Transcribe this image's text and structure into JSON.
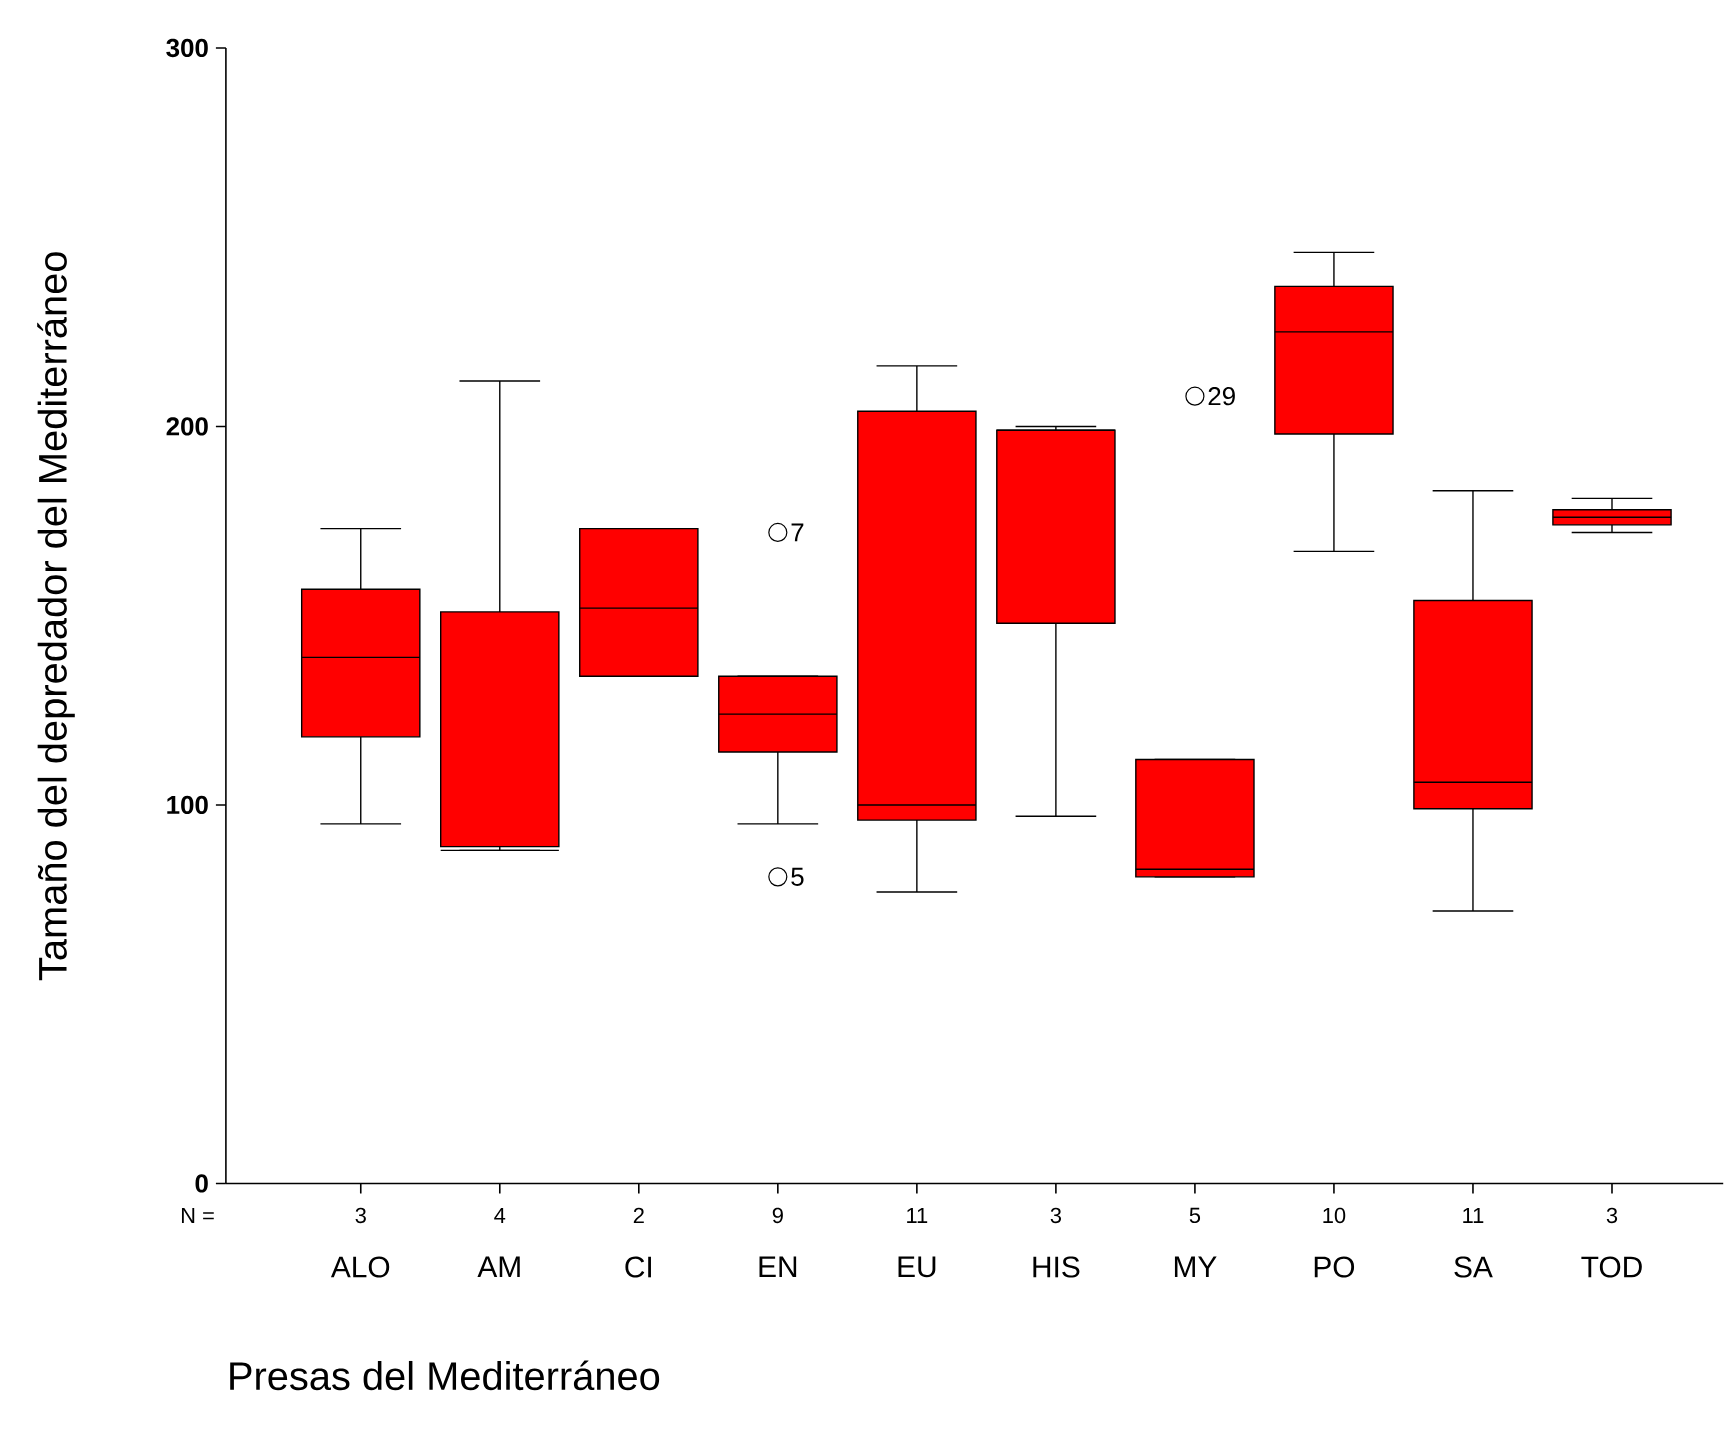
{
  "chart_data": {
    "type": "box",
    "ylabel": "Tamaño del depredador del Mediterráneo",
    "xlabel": "Presas del Mediterráneo",
    "categories": [
      "ALO",
      "AM",
      "CI",
      "EN",
      "EU",
      "HIS",
      "MY",
      "PO",
      "SA",
      "TOD"
    ],
    "color": "#ff0000",
    "marker": "circle",
    "ylim": [
      0,
      300
    ],
    "yticks": [
      0,
      100,
      200,
      300
    ],
    "grid": false,
    "boxes": [
      {
        "low": 95,
        "q1": 118,
        "median": 139,
        "q3": 157,
        "high": 173
      },
      {
        "low": 88,
        "q1": 89,
        "median": 88,
        "q3": 151,
        "high": 212
      },
      {
        "low": 134,
        "q1": 134,
        "median": 152,
        "q3": 173,
        "high": 173
      },
      {
        "low": 95,
        "q1": 114,
        "median": 124,
        "q3": 134,
        "high": 134,
        "outliers": [
          172,
          81
        ]
      },
      {
        "low": 77,
        "q1": 96,
        "median": 100,
        "q3": 204,
        "high": 216
      },
      {
        "low": 97,
        "q1": 148,
        "median": 199,
        "q3": 199,
        "high": 200
      },
      {
        "low": 81,
        "q1": 81,
        "median": 83,
        "q3": 112,
        "high": 112,
        "outliers": [
          208
        ]
      },
      {
        "low": 167,
        "q1": 198,
        "median": 225,
        "q3": 237,
        "high": 246
      },
      {
        "low": 72,
        "q1": 99,
        "median": 106,
        "q3": 154,
        "high": 183
      },
      {
        "low": 172,
        "q1": 174,
        "median": 176,
        "q3": 178,
        "high": 181
      }
    ],
    "annotations": [
      "N =",
      "3",
      "4",
      "2",
      "9",
      "11",
      "3",
      "5",
      "10",
      "11",
      "3",
      "7",
      "5",
      "29"
    ]
  }
}
